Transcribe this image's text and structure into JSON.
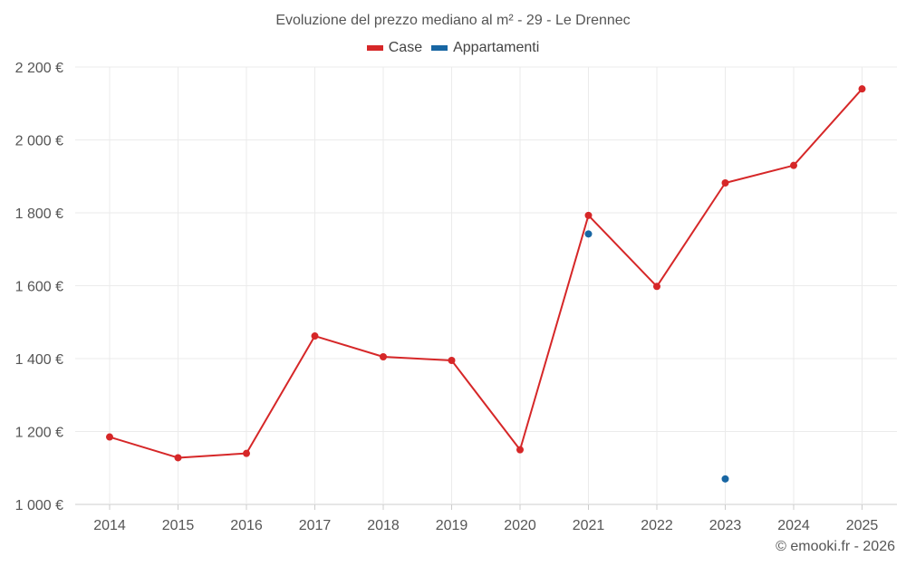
{
  "chart_data": {
    "type": "line",
    "title": "Evoluzione del prezzo mediano al m² - 29 - Le Drennec",
    "categories": [
      "2014",
      "2015",
      "2016",
      "2017",
      "2018",
      "2019",
      "2020",
      "2021",
      "2022",
      "2023",
      "2024",
      "2025"
    ],
    "series": [
      {
        "name": "Case",
        "color": "#d62728",
        "values": [
          1185,
          1128,
          1140,
          1462,
          1405,
          1395,
          1150,
          1793,
          1598,
          1882,
          1930,
          2140
        ]
      },
      {
        "name": "Appartamenti",
        "color": "#1866a3",
        "values": [
          null,
          null,
          null,
          null,
          null,
          null,
          null,
          1742,
          null,
          1070,
          null,
          null
        ]
      }
    ],
    "ylim": [
      1000,
      2200
    ],
    "yticks": [
      1000,
      1200,
      1400,
      1600,
      1800,
      2000,
      2200
    ],
    "ytick_labels": [
      "1 000 €",
      "1 200 €",
      "1 400 €",
      "1 600 €",
      "1 800 €",
      "2 000 €",
      "2 200 €"
    ],
    "grid": true,
    "legend_position": "top-center"
  },
  "credit": "© emooki.fr - 2026"
}
